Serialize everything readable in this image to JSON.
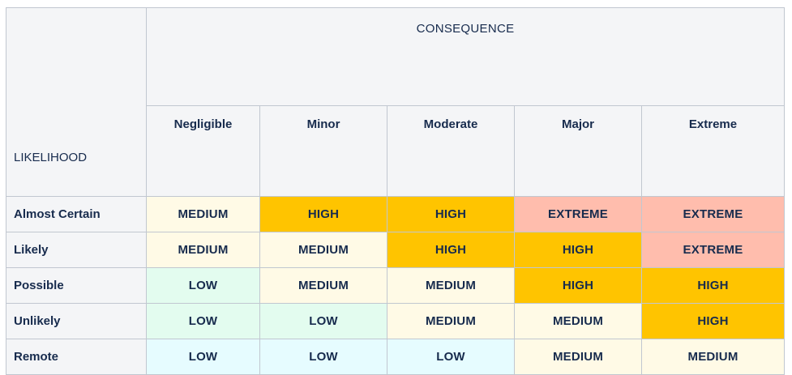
{
  "matrix": {
    "consequence_label": "CONSEQUENCE",
    "likelihood_label": "LIKELIHOOD",
    "consequences": [
      "Negligible",
      "Minor",
      "Moderate",
      "Major",
      "Extreme"
    ],
    "rows": [
      {
        "likelihood": "Almost Certain",
        "cells": [
          "MEDIUM",
          "HIGH",
          "HIGH",
          "EXTREME",
          "EXTREME"
        ]
      },
      {
        "likelihood": "Likely",
        "cells": [
          "MEDIUM",
          "MEDIUM",
          "HIGH",
          "HIGH",
          "EXTREME"
        ]
      },
      {
        "likelihood": "Possible",
        "cells": [
          "LOW",
          "MEDIUM",
          "MEDIUM",
          "HIGH",
          "HIGH"
        ]
      },
      {
        "likelihood": "Unlikely",
        "cells": [
          "LOW",
          "LOW",
          "MEDIUM",
          "MEDIUM",
          "HIGH"
        ]
      },
      {
        "likelihood": "Remote",
        "cells": [
          "LOW",
          "LOW",
          "LOW",
          "MEDIUM",
          "MEDIUM"
        ]
      }
    ],
    "cell_colors": [
      [
        "#fffae6",
        "#ffc400",
        "#ffc400",
        "#ffbdad",
        "#ffbdad"
      ],
      [
        "#fffae6",
        "#fffae6",
        "#ffc400",
        "#ffc400",
        "#ffbdad"
      ],
      [
        "#e3fcef",
        "#fffae6",
        "#fffae6",
        "#ffc400",
        "#ffc400"
      ],
      [
        "#e3fcef",
        "#e3fcef",
        "#fffae6",
        "#fffae6",
        "#ffc400"
      ],
      [
        "#e6fcff",
        "#e6fcff",
        "#e6fcff",
        "#fffae6",
        "#fffae6"
      ]
    ],
    "header_background": "#f4f5f7",
    "border_color": "#c1c7d0",
    "text_color": "#172b4d"
  }
}
